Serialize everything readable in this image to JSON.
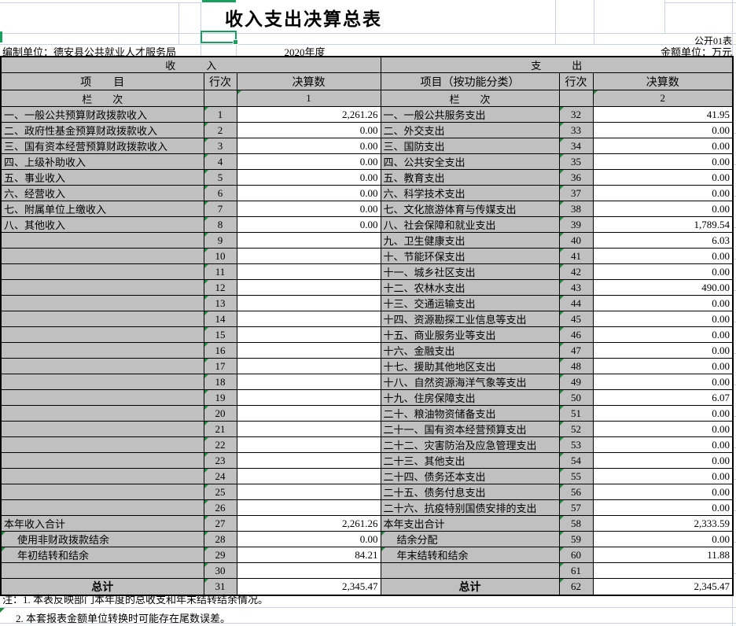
{
  "header": {
    "title": "收入支出决算总表",
    "table_code": "公开01表",
    "prepared_by": "编制单位：德安县公共就业人才服务局",
    "year": "2020年度",
    "unit_label": "金额单位：万元"
  },
  "table": {
    "income_section_label": "收　　　入",
    "expense_section_label": "支　　　出",
    "income_item_header": "项　　目",
    "row_no_header_left": "行次",
    "amount_header_left": "决算数",
    "expense_item_header": "项目（按功能分类）",
    "row_no_header_right": "行次",
    "amount_header_right": "决算数",
    "lan_ci_left": "栏　　次",
    "lan_ci_right": "栏　　次",
    "income_col_no": "1",
    "expense_col_no": "2",
    "rows": [
      {
        "l": "一、一般公共预算财政拨款收入",
        "ln": "1",
        "lv": "2,261.26",
        "r": "一、一般公共服务支出",
        "rn": "32",
        "rv": "41.95"
      },
      {
        "l": "二、政府性基金预算财政拨款收入",
        "ln": "2",
        "lv": "0.00",
        "r": "二、外交支出",
        "rn": "33",
        "rv": "0.00"
      },
      {
        "l": "三、国有资本经营预算财政拨款收入",
        "ln": "3",
        "lv": "0.00",
        "r": "三、国防支出",
        "rn": "34",
        "rv": "0.00"
      },
      {
        "l": "四、上级补助收入",
        "ln": "4",
        "lv": "0.00",
        "r": "四、公共安全支出",
        "rn": "35",
        "rv": "0.00"
      },
      {
        "l": "五、事业收入",
        "ln": "5",
        "lv": "0.00",
        "r": "五、教育支出",
        "rn": "36",
        "rv": "0.00"
      },
      {
        "l": "六、经营收入",
        "ln": "6",
        "lv": "0.00",
        "r": "六、科学技术支出",
        "rn": "37",
        "rv": "0.00"
      },
      {
        "l": "七、附属单位上缴收入",
        "ln": "7",
        "lv": "0.00",
        "r": "七、文化旅游体育与传媒支出",
        "rn": "38",
        "rv": "0.00"
      },
      {
        "l": "八、其他收入",
        "ln": "8",
        "lv": "0.00",
        "r": "八、社会保障和就业支出",
        "rn": "39",
        "rv": "1,789.54"
      },
      {
        "l": "",
        "ln": "9",
        "lv": "",
        "r": "九、卫生健康支出",
        "rn": "40",
        "rv": "6.03"
      },
      {
        "l": "",
        "ln": "10",
        "lv": "",
        "r": "十、节能环保支出",
        "rn": "41",
        "rv": "0.00"
      },
      {
        "l": "",
        "ln": "11",
        "lv": "",
        "r": "十一、城乡社区支出",
        "rn": "42",
        "rv": "0.00"
      },
      {
        "l": "",
        "ln": "12",
        "lv": "",
        "r": "十二、农林水支出",
        "rn": "43",
        "rv": "490.00"
      },
      {
        "l": "",
        "ln": "13",
        "lv": "",
        "r": "十三、交通运输支出",
        "rn": "44",
        "rv": "0.00"
      },
      {
        "l": "",
        "ln": "14",
        "lv": "",
        "r": "十四、资源勘探工业信息等支出",
        "rn": "45",
        "rv": "0.00"
      },
      {
        "l": "",
        "ln": "15",
        "lv": "",
        "r": "十五、商业服务业等支出",
        "rn": "46",
        "rv": "0.00"
      },
      {
        "l": "",
        "ln": "16",
        "lv": "",
        "r": "十六、金融支出",
        "rn": "47",
        "rv": "0.00"
      },
      {
        "l": "",
        "ln": "17",
        "lv": "",
        "r": "十七、援助其他地区支出",
        "rn": "48",
        "rv": "0.00"
      },
      {
        "l": "",
        "ln": "18",
        "lv": "",
        "r": "十八、自然资源海洋气象等支出",
        "rn": "49",
        "rv": "0.00"
      },
      {
        "l": "",
        "ln": "19",
        "lv": "",
        "r": "十九、住房保障支出",
        "rn": "50",
        "rv": "6.07"
      },
      {
        "l": "",
        "ln": "20",
        "lv": "",
        "r": "二十、粮油物资储备支出",
        "rn": "51",
        "rv": "0.00"
      },
      {
        "l": "",
        "ln": "21",
        "lv": "",
        "r": "二十一、国有资本经营预算支出",
        "rn": "52",
        "rv": "0.00"
      },
      {
        "l": "",
        "ln": "22",
        "lv": "",
        "r": "二十二、灾害防治及应急管理支出",
        "rn": "53",
        "rv": "0.00"
      },
      {
        "l": "",
        "ln": "23",
        "lv": "",
        "r": "二十三、其他支出",
        "rn": "54",
        "rv": "0.00"
      },
      {
        "l": "",
        "ln": "24",
        "lv": "",
        "r": "二十四、债务还本支出",
        "rn": "55",
        "rv": "0.00"
      },
      {
        "l": "",
        "ln": "25",
        "lv": "",
        "r": "二十五、债务付息支出",
        "rn": "56",
        "rv": "0.00"
      },
      {
        "l": "",
        "ln": "26",
        "lv": "",
        "r": "二十六、抗疫特别国债安排的支出",
        "rn": "57",
        "rv": "0.00"
      },
      {
        "l": "本年收入合计",
        "ln": "27",
        "lv": "2,261.26",
        "r": "本年支出合计",
        "rn": "58",
        "rv": "2,333.59"
      },
      {
        "l": "使用非财政拨款结余",
        "ln": "28",
        "lv": "0.00",
        "r": "结余分配",
        "rn": "59",
        "rv": "0.00",
        "style": "indent"
      },
      {
        "l": "年初结转和结余",
        "ln": "29",
        "lv": "84.21",
        "r": "年末结转和结余",
        "rn": "60",
        "rv": "11.88",
        "style": "indent"
      },
      {
        "l": "",
        "ln": "30",
        "lv": "",
        "r": "",
        "rn": "61",
        "rv": ""
      },
      {
        "l": "总计",
        "ln": "31",
        "lv": "2,345.47",
        "r": "总计",
        "rn": "62",
        "rv": "2,345.47",
        "style": "total"
      }
    ]
  },
  "notes": {
    "note1": "注：1. 本表反映部门本年度的总收支和年末结转结余情况。",
    "note2": "2. 本套报表金额单位转换时可能存在尾数误差。"
  },
  "colors": {
    "header_gray": "#c0c0c0",
    "selection_green": "#17a05e",
    "comment_flag_green": "#1f8a3c",
    "gridline_blue": "#c9d3e6",
    "border_black": "#000000"
  }
}
